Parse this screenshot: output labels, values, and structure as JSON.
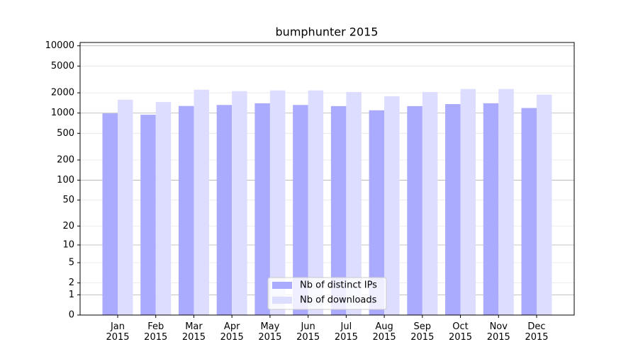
{
  "chart_data": {
    "type": "bar",
    "title": "bumphunter 2015",
    "categories": [
      "Jan\n2015",
      "Feb\n2015",
      "Mar\n2015",
      "Apr\n2015",
      "May\n2015",
      "Jun\n2015",
      "Jul\n2015",
      "Aug\n2015",
      "Sep\n2015",
      "Oct\n2015",
      "Nov\n2015",
      "Dec\n2015"
    ],
    "series": [
      {
        "name": "Nb of distinct IPs",
        "color": "#aaaaff",
        "values": [
          990,
          945,
          1275,
          1320,
          1400,
          1320,
          1270,
          1100,
          1270,
          1360,
          1400,
          1190
        ]
      },
      {
        "name": "Nb of downloads",
        "color": "#ddddff",
        "values": [
          1580,
          1460,
          2225,
          2120,
          2170,
          2170,
          2060,
          1780,
          2060,
          2280,
          2280,
          1880
        ]
      }
    ],
    "yscale": "log1p",
    "ylim": [
      0,
      11200
    ],
    "yticks": [
      0,
      1,
      2,
      5,
      10,
      20,
      50,
      100,
      200,
      500,
      1000,
      2000,
      5000,
      10000
    ],
    "grid": true,
    "legend": "lower center"
  }
}
